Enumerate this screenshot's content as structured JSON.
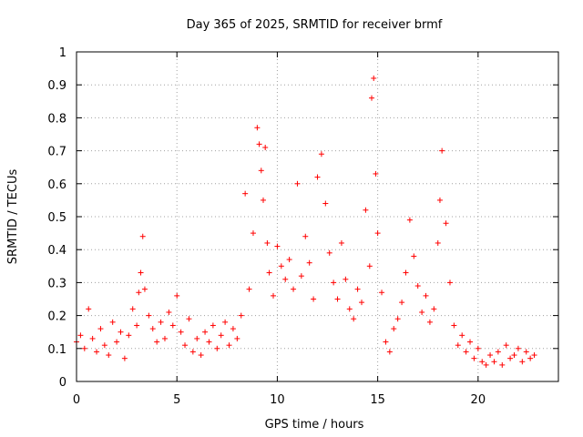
{
  "chart_data": {
    "type": "scatter",
    "title": "Day 365 of 2025, SRMTID for receiver brmf",
    "xlabel": "GPS time / hours",
    "ylabel": "SRMTID / TECUs",
    "xlim": [
      0,
      24
    ],
    "ylim": [
      0,
      1
    ],
    "xticks": [
      0,
      5,
      10,
      15,
      20
    ],
    "yticks": [
      0,
      0.1,
      0.2,
      0.3,
      0.4,
      0.5,
      0.6,
      0.7,
      0.8,
      0.9,
      1
    ],
    "grid": true,
    "marker": "plus",
    "color": "#ff0000",
    "series": [
      {
        "name": "brmf",
        "x": [
          0.0,
          0.2,
          0.4,
          0.6,
          0.8,
          1.0,
          1.2,
          1.4,
          1.6,
          1.8,
          2.0,
          2.2,
          2.4,
          2.6,
          2.8,
          3.0,
          3.1,
          3.2,
          3.3,
          3.4,
          3.6,
          3.8,
          4.0,
          4.2,
          4.4,
          4.6,
          4.8,
          5.0,
          5.2,
          5.4,
          5.6,
          5.8,
          6.0,
          6.2,
          6.4,
          6.6,
          6.8,
          7.0,
          7.2,
          7.4,
          7.6,
          7.8,
          8.0,
          8.2,
          8.4,
          8.6,
          8.8,
          9.0,
          9.1,
          9.2,
          9.3,
          9.4,
          9.5,
          9.6,
          9.8,
          10.0,
          10.2,
          10.4,
          10.6,
          10.8,
          11.0,
          11.2,
          11.4,
          11.6,
          11.8,
          12.0,
          12.2,
          12.4,
          12.6,
          12.8,
          13.0,
          13.2,
          13.4,
          13.6,
          13.8,
          14.0,
          14.2,
          14.4,
          14.6,
          14.7,
          14.8,
          14.9,
          15.0,
          15.2,
          15.4,
          15.6,
          15.8,
          16.0,
          16.2,
          16.4,
          16.6,
          16.8,
          17.0,
          17.2,
          17.4,
          17.6,
          17.8,
          18.0,
          18.1,
          18.2,
          18.4,
          18.6,
          18.8,
          19.0,
          19.2,
          19.4,
          19.6,
          19.8,
          20.0,
          20.2,
          20.4,
          20.6,
          20.8,
          21.0,
          21.2,
          21.4,
          21.6,
          21.8,
          22.0,
          22.2,
          22.4,
          22.6,
          22.8
        ],
        "y": [
          0.12,
          0.14,
          0.1,
          0.22,
          0.13,
          0.09,
          0.16,
          0.11,
          0.08,
          0.18,
          0.12,
          0.15,
          0.07,
          0.14,
          0.22,
          0.17,
          0.27,
          0.33,
          0.44,
          0.28,
          0.2,
          0.16,
          0.12,
          0.18,
          0.13,
          0.21,
          0.17,
          0.26,
          0.15,
          0.11,
          0.19,
          0.09,
          0.13,
          0.08,
          0.15,
          0.12,
          0.17,
          0.1,
          0.14,
          0.18,
          0.11,
          0.16,
          0.13,
          0.2,
          0.57,
          0.28,
          0.45,
          0.77,
          0.72,
          0.64,
          0.55,
          0.71,
          0.42,
          0.33,
          0.26,
          0.41,
          0.35,
          0.31,
          0.37,
          0.28,
          0.6,
          0.32,
          0.44,
          0.36,
          0.25,
          0.62,
          0.69,
          0.54,
          0.39,
          0.3,
          0.25,
          0.42,
          0.31,
          0.22,
          0.19,
          0.28,
          0.24,
          0.52,
          0.35,
          0.86,
          0.92,
          0.63,
          0.45,
          0.27,
          0.12,
          0.09,
          0.16,
          0.19,
          0.24,
          0.33,
          0.49,
          0.38,
          0.29,
          0.21,
          0.26,
          0.18,
          0.22,
          0.42,
          0.55,
          0.7,
          0.48,
          0.3,
          0.17,
          0.11,
          0.14,
          0.09,
          0.12,
          0.07,
          0.1,
          0.06,
          0.05,
          0.08,
          0.06,
          0.09,
          0.05,
          0.11,
          0.07,
          0.08,
          0.1,
          0.06,
          0.09,
          0.07,
          0.08
        ]
      }
    ]
  }
}
